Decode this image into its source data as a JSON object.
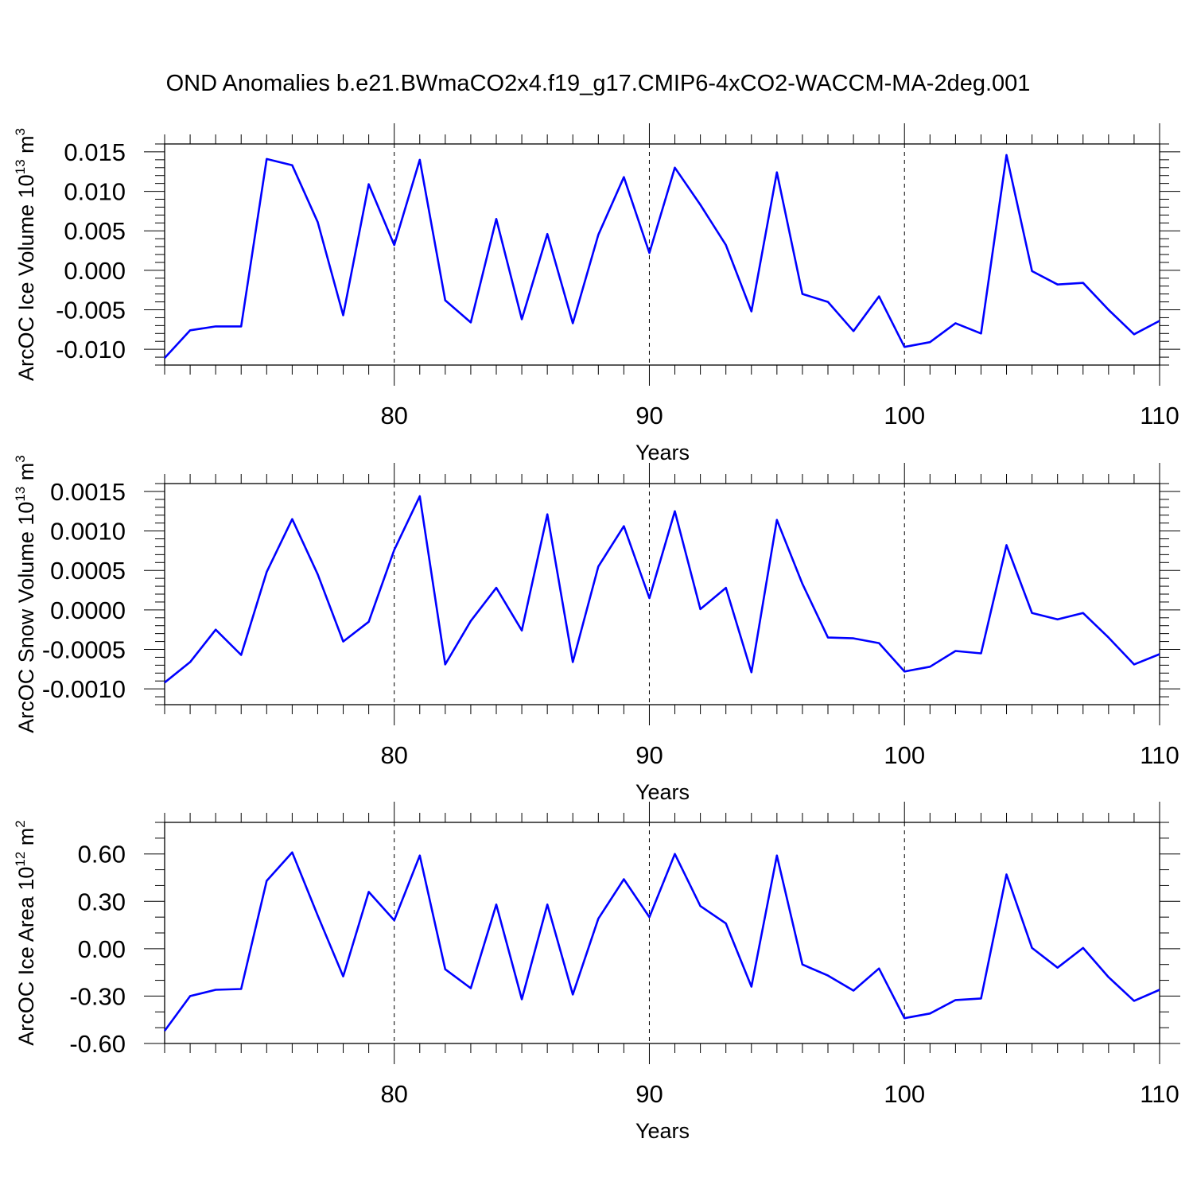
{
  "title": "OND Anomalies b.e21.BWmaCO2x4.f19_g17.CMIP6-4xCO2-WACCM-MA-2deg.001",
  "line_color": "#0000ff",
  "chart_data": [
    {
      "type": "line",
      "ylabel": {
        "text": "ArcOC Ice Volume 10",
        "exp": "13",
        "unit": " m",
        "unit_exp": "3"
      },
      "xlabel": "Years",
      "xlim": [
        71,
        110
      ],
      "ylim": [
        -0.012,
        0.016
      ],
      "yticks": [
        -0.01,
        -0.005,
        0.0,
        0.005,
        0.01,
        0.015
      ],
      "ytick_labels": [
        "-0.010",
        "-0.005",
        "0.000",
        "0.005",
        "0.010",
        "0.015"
      ],
      "yminor_step": 0.001,
      "xticks": [
        80,
        90,
        100,
        110
      ],
      "xtick_labels": [
        "80",
        "90",
        "100",
        "110"
      ],
      "vlines": [
        80,
        90,
        100
      ],
      "series": [
        {
          "x": [
            71,
            72,
            73,
            74,
            75,
            76,
            77,
            78,
            79,
            80,
            81,
            82,
            83,
            84,
            85,
            86,
            87,
            88,
            89,
            90,
            91,
            92,
            93,
            94,
            95,
            96,
            97,
            98,
            99,
            100,
            101,
            102,
            103,
            104,
            105,
            106,
            107,
            108,
            109,
            110
          ],
          "values": [
            -0.0111,
            -0.0076,
            -0.0071,
            -0.0071,
            0.0141,
            0.0133,
            0.0061,
            -0.0057,
            0.0109,
            0.0032,
            0.014,
            -0.0038,
            -0.0066,
            0.0065,
            -0.0062,
            0.0046,
            -0.0067,
            0.0045,
            0.0118,
            0.0022,
            0.013,
            0.0083,
            0.0032,
            -0.0052,
            0.0124,
            -0.003,
            -0.004,
            -0.0077,
            -0.0033,
            -0.0097,
            -0.0091,
            -0.0067,
            -0.008,
            0.0146,
            -0.0001,
            -0.0018,
            -0.0016,
            -0.005,
            -0.0081,
            -0.0064
          ]
        }
      ]
    },
    {
      "type": "line",
      "ylabel": {
        "text": "ArcOC Snow Volume 10",
        "exp": "13",
        "unit": " m",
        "unit_exp": "3"
      },
      "xlabel": "Years",
      "xlim": [
        71,
        110
      ],
      "ylim": [
        -0.0012,
        0.0016
      ],
      "yticks": [
        -0.001,
        -0.0005,
        0.0,
        0.0005,
        0.001,
        0.0015
      ],
      "ytick_labels": [
        "-0.0010",
        "-0.0005",
        "0.0000",
        "0.0005",
        "0.0010",
        "0.0015"
      ],
      "yminor_step": 0.0001,
      "xticks": [
        80,
        90,
        100,
        110
      ],
      "xtick_labels": [
        "80",
        "90",
        "100",
        "110"
      ],
      "vlines": [
        80,
        90,
        100
      ],
      "series": [
        {
          "x": [
            71,
            72,
            73,
            74,
            75,
            76,
            77,
            78,
            79,
            80,
            81,
            82,
            83,
            84,
            85,
            86,
            87,
            88,
            89,
            90,
            91,
            92,
            93,
            94,
            95,
            96,
            97,
            98,
            99,
            100,
            101,
            102,
            103,
            104,
            105,
            106,
            107,
            108,
            109,
            110
          ],
          "values": [
            -0.00092,
            -0.00066,
            -0.00025,
            -0.00057,
            0.00048,
            0.00115,
            0.00045,
            -0.0004,
            -0.00015,
            0.00076,
            0.00144,
            -0.00069,
            -0.00014,
            0.00028,
            -0.00026,
            0.00121,
            -0.00066,
            0.00055,
            0.00106,
            0.00015,
            0.00125,
            1e-05,
            0.00028,
            -0.00079,
            0.00114,
            0.00033,
            -0.00035,
            -0.00036,
            -0.00042,
            -0.00078,
            -0.00072,
            -0.00052,
            -0.00055,
            0.00082,
            -4e-05,
            -0.00012,
            -4e-05,
            -0.00035,
            -0.00069,
            -0.00056
          ]
        }
      ]
    },
    {
      "type": "line",
      "ylabel": {
        "text": "ArcOC Ice Area 10",
        "exp": "12",
        "unit": " m",
        "unit_exp": "2"
      },
      "xlabel": "Years",
      "xlim": [
        71,
        110
      ],
      "ylim": [
        -0.6,
        0.8
      ],
      "yticks": [
        -0.6,
        -0.3,
        0.0,
        0.3,
        0.6
      ],
      "ytick_labels": [
        "-0.60",
        "-0.30",
        "0.00",
        "0.30",
        "0.60"
      ],
      "yminor_step": 0.1,
      "xticks": [
        80,
        90,
        100,
        110
      ],
      "xtick_labels": [
        "80",
        "90",
        "100",
        "110"
      ],
      "vlines": [
        80,
        90,
        100
      ],
      "series": [
        {
          "x": [
            71,
            72,
            73,
            74,
            75,
            76,
            77,
            78,
            79,
            80,
            81,
            82,
            83,
            84,
            85,
            86,
            87,
            88,
            89,
            90,
            91,
            92,
            93,
            94,
            95,
            96,
            97,
            98,
            99,
            100,
            101,
            102,
            103,
            104,
            105,
            106,
            107,
            108,
            109,
            110
          ],
          "values": [
            -0.52,
            -0.3,
            -0.26,
            -0.255,
            0.43,
            0.61,
            0.21,
            -0.175,
            0.36,
            0.18,
            0.59,
            -0.13,
            -0.25,
            0.28,
            -0.32,
            0.28,
            -0.29,
            0.19,
            0.44,
            0.2,
            0.6,
            0.27,
            0.16,
            -0.24,
            0.59,
            -0.1,
            -0.17,
            -0.265,
            -0.125,
            -0.44,
            -0.41,
            -0.325,
            -0.315,
            0.47,
            0.005,
            -0.12,
            0.005,
            -0.18,
            -0.33,
            -0.26
          ]
        }
      ]
    }
  ]
}
